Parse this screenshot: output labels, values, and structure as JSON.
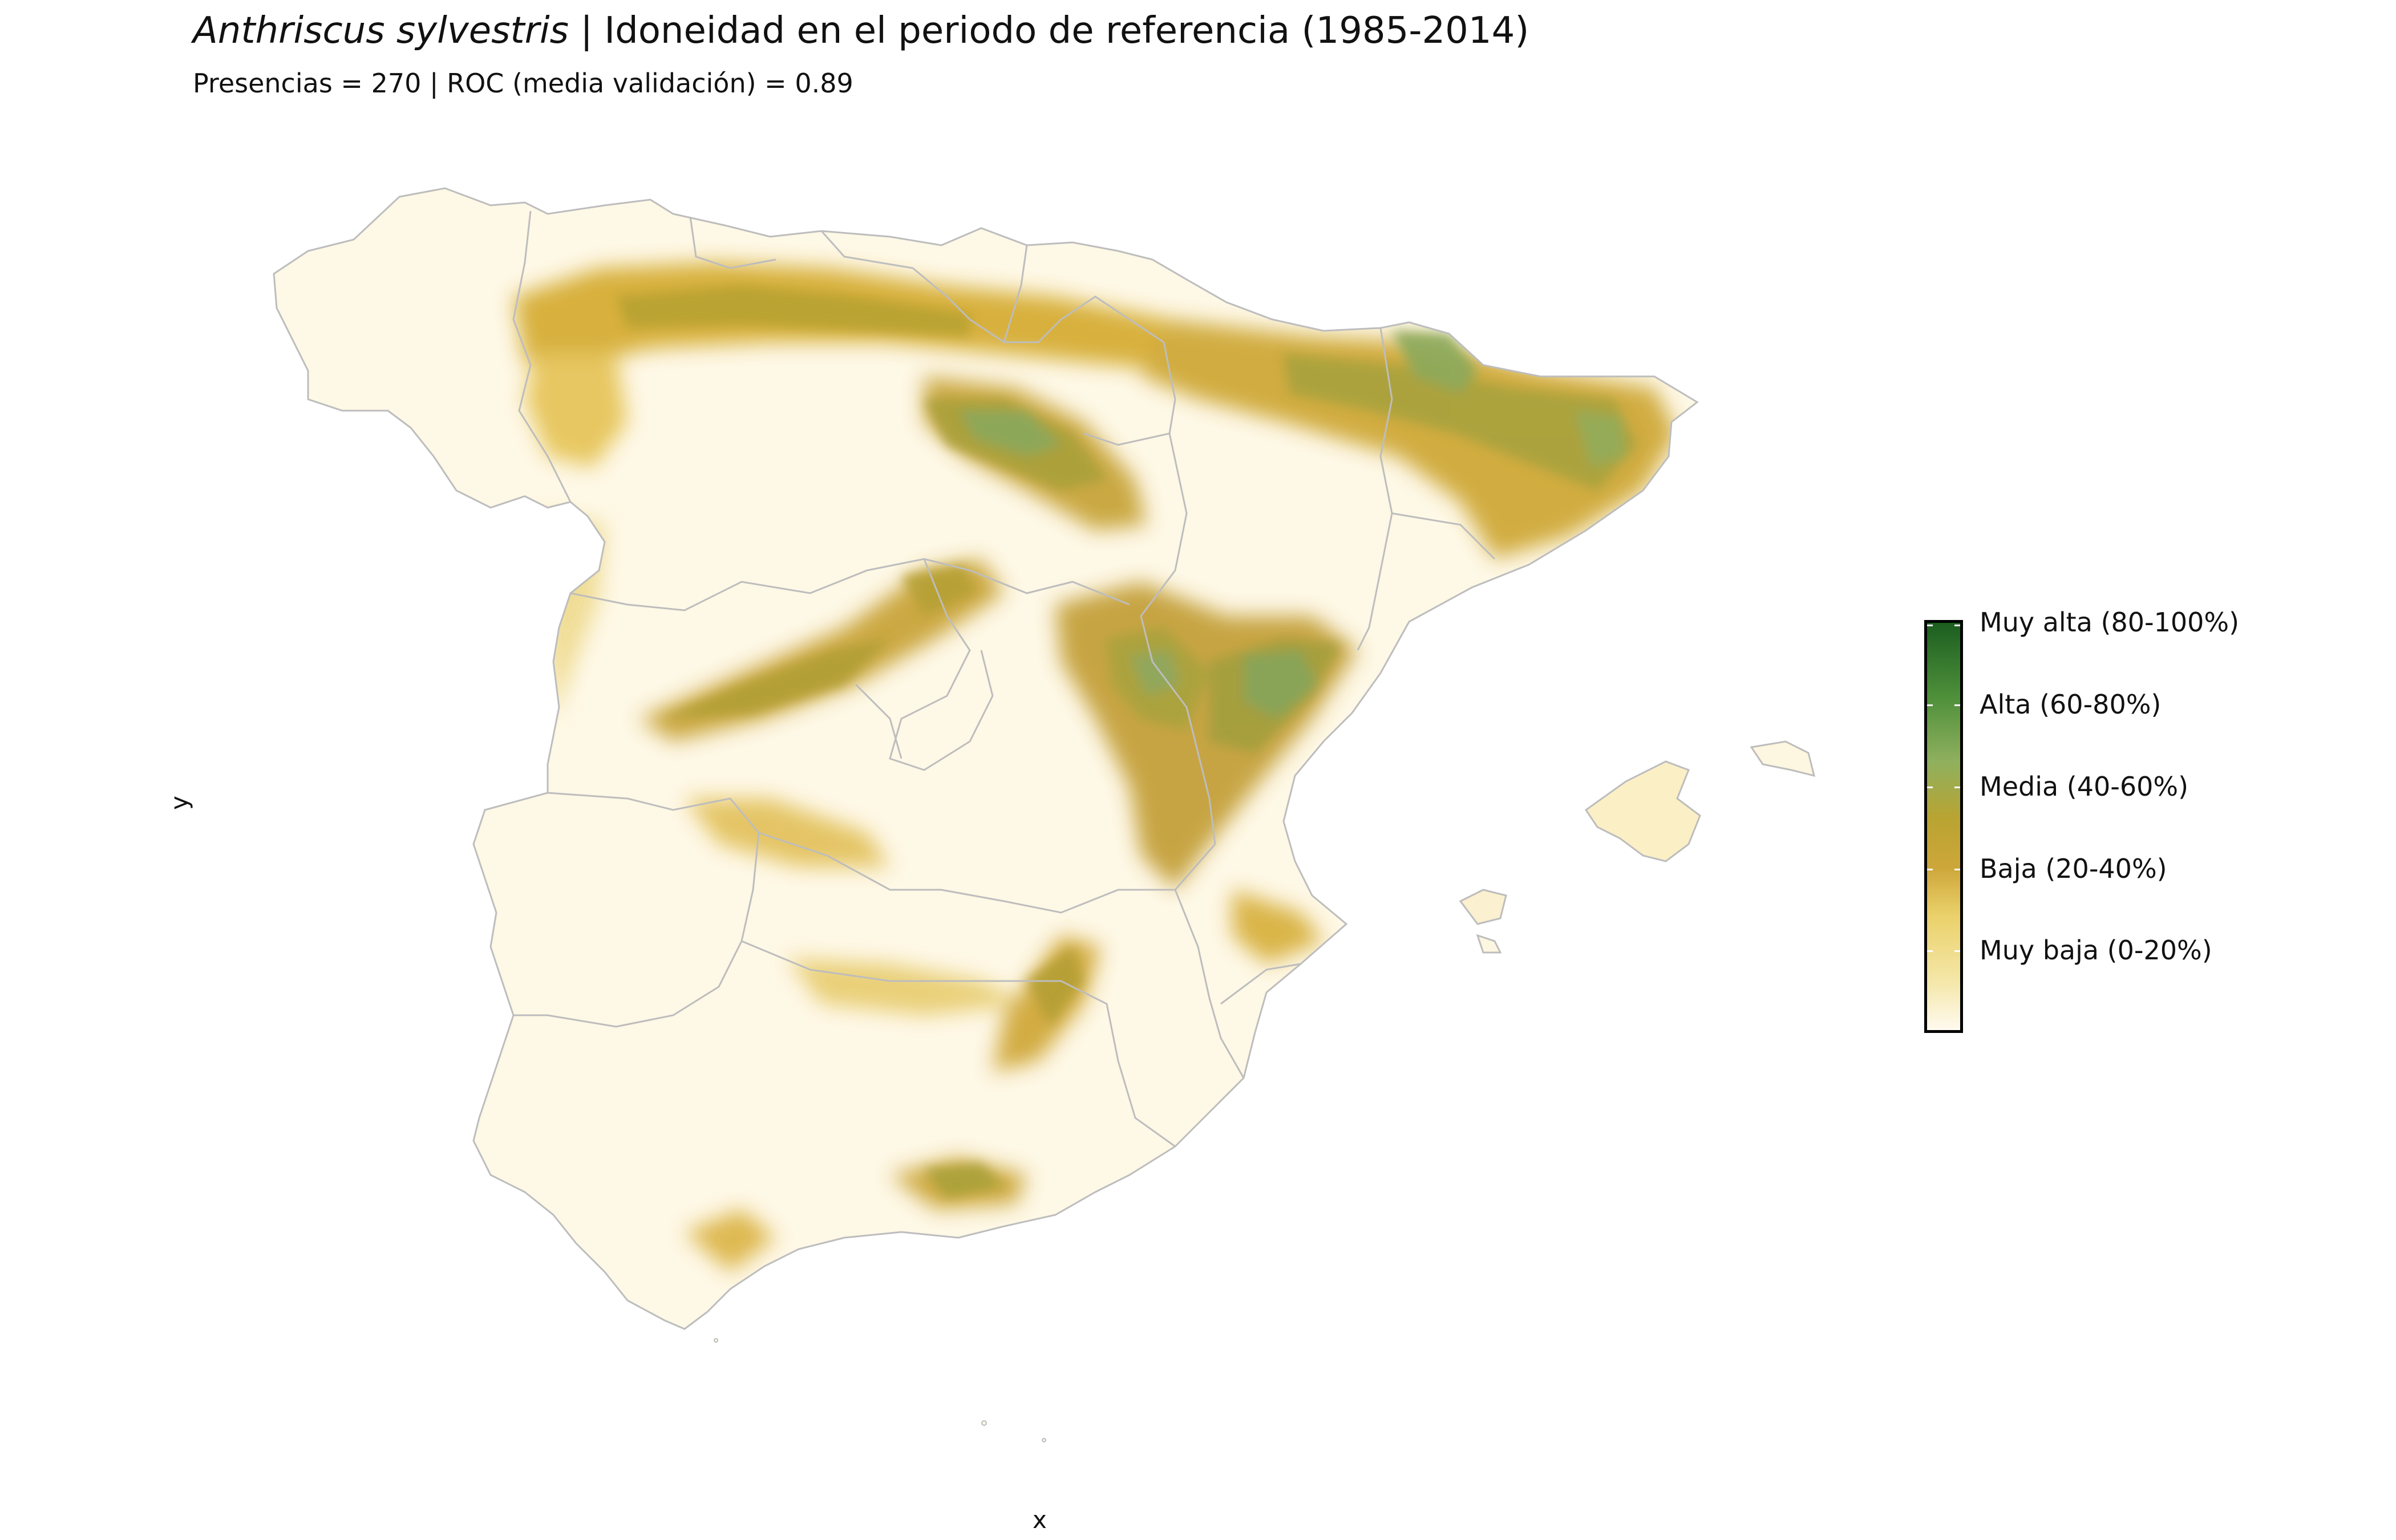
{
  "title": {
    "species": "Anthriscus sylvestris",
    "rest": " | Idoneidad en el periodo de referencia (1985-2014)"
  },
  "subtitle": "Presencias = 270  |  ROC (media validación) = 0.89",
  "axes": {
    "x_label": "x",
    "y_label": "y"
  },
  "legend": {
    "labels": [
      "Muy alta (80-100%)",
      "Alta (60-80%)",
      "Media (40-60%)",
      "Baja (20-40%)",
      "Muy baja (0-20%)"
    ],
    "colors": [
      "#1b5e20",
      "#7fa85a",
      "#b9a432",
      "#cda63a",
      "#f4e7a8",
      "#fffaf0"
    ]
  },
  "colors": {
    "very_low": "#fdf6e0",
    "low": "#ecd883",
    "medium_low": "#d4a92c",
    "medium": "#b7a232",
    "high": "#83a45a",
    "border": "#bdbdbd"
  }
}
